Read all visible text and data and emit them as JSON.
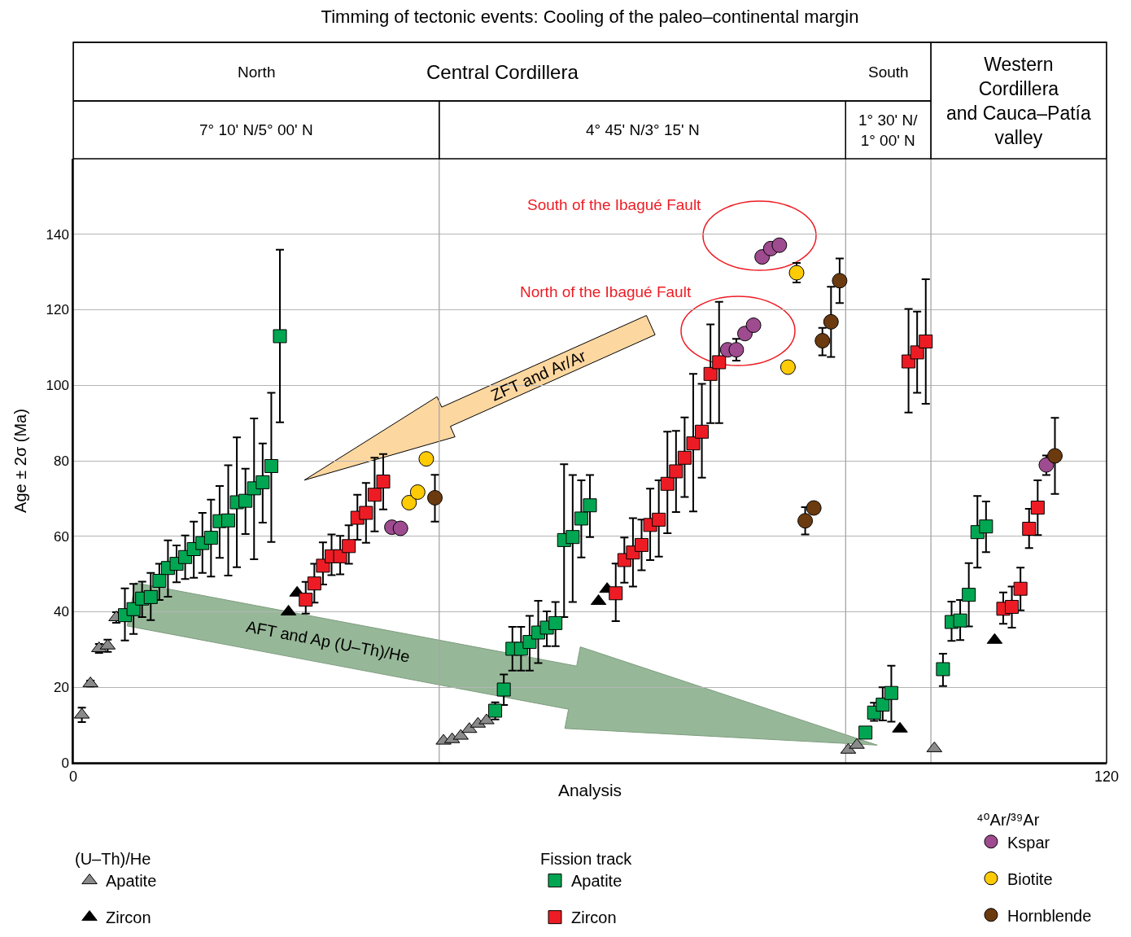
{
  "chart_data": {
    "type": "scatter",
    "title": "Timming of tectonic events: Cooling of the paleo–continental margin",
    "xlabel": "Analysis",
    "ylabel": "Age ± 2σ (Ma)",
    "xlim": [
      0,
      120
    ],
    "xticks": [
      0,
      120
    ],
    "ylim": [
      0,
      160
    ],
    "yticks": [
      0,
      20,
      40,
      60,
      80,
      100,
      120,
      140
    ],
    "grid": "y",
    "legend": "bottom",
    "legend_title": [
      "(U–Th)/He",
      "Fission track",
      "⁴⁰Ar/³⁹Ar"
    ],
    "series": [
      {
        "name": "Apatite",
        "color": "#8a8a8a",
        "marker": "triangle",
        "x": [
          1,
          2,
          3,
          4,
          5,
          43,
          44,
          45,
          46,
          47,
          48,
          90,
          91,
          100
        ],
        "values": [
          12.7,
          21.0,
          30.3,
          31.0,
          38.5,
          5.8,
          6.2,
          7.1,
          8.9,
          10.3,
          11.2,
          3.4,
          4.7,
          3.8
        ],
        "errors": [
          [
            10.8,
            14.6
          ],
          [
            20.2,
            21.8
          ],
          [
            29.1,
            31.5
          ],
          [
            29.4,
            32.6
          ],
          [
            37.1,
            39.9
          ],
          null,
          null,
          null,
          null,
          null,
          null,
          null,
          null,
          null
        ]
      },
      {
        "name": "Zircon",
        "color": "#000000",
        "marker": "triangle",
        "x": [
          25,
          26,
          61,
          62,
          96,
          107
        ],
        "values": [
          40.0,
          45.0,
          42.8,
          46.0,
          9.0,
          32.5
        ]
      },
      {
        "name": "Apatite",
        "color": "#00a651",
        "marker": "square",
        "x": [
          6,
          7,
          8,
          9,
          10,
          11,
          12,
          13,
          14,
          15,
          16,
          17,
          18,
          19,
          20,
          21,
          22,
          23,
          24,
          49,
          50,
          51,
          52,
          53,
          54,
          55,
          56,
          57,
          58,
          59,
          60,
          92,
          93,
          94,
          95,
          101,
          102,
          103,
          104,
          105,
          106
        ],
        "values": [
          39.1,
          40.7,
          43.5,
          43.9,
          48.2,
          51.6,
          52.7,
          54.5,
          56.6,
          58.2,
          59.6,
          64.0,
          64.2,
          69.0,
          69.4,
          72.7,
          74.3,
          78.6,
          113.0,
          13.8,
          19.4,
          30.2,
          30.2,
          32.0,
          34.5,
          35.8,
          37.0,
          59.0,
          59.8,
          64.7,
          68.2,
          8.0,
          13.3,
          15.4,
          18.5,
          24.8,
          37.3,
          37.7,
          44.5,
          61.1,
          62.6
        ],
        "errors": [
          [
            32.4,
            46.2
          ],
          [
            34.1,
            47.4
          ],
          [
            38.6,
            48.0
          ],
          [
            37.8,
            50.3
          ],
          [
            43.1,
            52.7
          ],
          [
            44.0,
            58.9
          ],
          [
            47.8,
            57.6
          ],
          [
            48.7,
            60.2
          ],
          [
            49.0,
            63.9
          ],
          [
            50.3,
            66.2
          ],
          [
            49.3,
            69.7
          ],
          [
            54.3,
            73.3
          ],
          [
            49.6,
            78.8
          ],
          [
            51.8,
            86.2
          ],
          [
            60.6,
            77.9
          ],
          [
            53.9,
            91.2
          ],
          [
            63.6,
            84.6
          ],
          [
            58.5,
            98.0
          ],
          [
            90.2,
            135.9
          ],
          [
            11.5,
            16.0
          ],
          [
            15.3,
            23.4
          ],
          [
            24.4,
            36.0
          ],
          [
            24.4,
            36.0
          ],
          [
            24.4,
            38.9
          ],
          [
            26.4,
            42.9
          ],
          [
            30.9,
            40.1
          ],
          [
            30.9,
            42.6
          ],
          [
            38.6,
            79.1
          ],
          [
            42.6,
            76.2
          ],
          [
            54.4,
            74.8
          ],
          [
            59.8,
            76.2
          ],
          null,
          [
            11.1,
            15.9
          ],
          [
            11.2,
            20.0
          ],
          [
            10.9,
            25.7
          ],
          [
            20.3,
            28.9
          ],
          [
            32.3,
            42.7
          ],
          [
            32.5,
            43.1
          ],
          [
            36.1,
            52.9
          ],
          [
            51.7,
            70.7
          ],
          [
            55.8,
            69.2
          ]
        ]
      },
      {
        "name": "Zircon",
        "color": "#ed1c24",
        "marker": "square",
        "x": [
          27,
          28,
          29,
          30,
          31,
          32,
          33,
          34,
          35,
          36,
          63,
          64,
          65,
          66,
          67,
          68,
          69,
          70,
          71,
          72,
          73,
          74,
          75,
          97,
          98,
          99,
          108,
          109,
          110,
          111,
          112
        ],
        "values": [
          43.2,
          47.5,
          52.2,
          54.7,
          54.7,
          57.4,
          64.9,
          66.2,
          71.0,
          74.5,
          44.9,
          53.7,
          55.7,
          57.7,
          63.0,
          64.4,
          73.9,
          77.2,
          80.8,
          84.6,
          87.7,
          103.0,
          106.1,
          106.3,
          108.7,
          111.6,
          40.8,
          41.3,
          46.1,
          62.0,
          67.6
        ],
        "errors": [
          [
            39.5,
            47.9
          ],
          [
            42.4,
            52.7
          ],
          [
            47.2,
            58.4
          ],
          [
            49.7,
            60.5
          ],
          [
            49.9,
            60.1
          ],
          [
            52.7,
            62.9
          ],
          [
            59.1,
            71.0
          ],
          [
            58.3,
            74.1
          ],
          [
            61.3,
            80.8
          ],
          [
            67.1,
            81.8
          ],
          [
            37.5,
            52.8
          ],
          [
            47.7,
            59.7
          ],
          [
            46.7,
            64.8
          ],
          [
            51.0,
            64.4
          ],
          [
            53.7,
            72.6
          ],
          [
            54.6,
            74.8
          ],
          [
            60.8,
            87.7
          ],
          [
            66.4,
            87.9
          ],
          [
            70.4,
            91.5
          ],
          [
            66.6,
            103.0
          ],
          [
            75.5,
            100.4
          ],
          [
            90.0,
            116.1
          ],
          [
            90.0,
            122.1
          ],
          [
            92.8,
            120.2
          ],
          [
            98.0,
            119.5
          ],
          [
            95.1,
            128.1
          ],
          [
            36.8,
            45.1
          ],
          [
            35.8,
            46.7
          ],
          [
            40.4,
            51.7
          ],
          [
            56.9,
            67.3
          ],
          [
            60.3,
            74.8
          ]
        ]
      },
      {
        "name": "Kspar",
        "color": "#9e4b8f",
        "marker": "circle",
        "x": [
          37,
          38,
          76,
          77,
          78,
          79,
          80,
          81,
          82,
          113
        ],
        "values": [
          62.4,
          62.1,
          109.4,
          109.4,
          113.7,
          115.9,
          134.0,
          136.2,
          137.1,
          78.9
        ],
        "errors": [
          null,
          null,
          null,
          [
            106.5,
            112.3
          ],
          null,
          null,
          null,
          null,
          null,
          [
            76.2,
            81.4
          ]
        ]
      },
      {
        "name": "Biotite",
        "color": "#ffcb05",
        "marker": "circle",
        "x": [
          39,
          40,
          41,
          83,
          84
        ],
        "values": [
          68.9,
          71.7,
          80.5,
          104.8,
          129.8
        ],
        "errors": [
          null,
          null,
          null,
          null,
          [
            127.2,
            132.4
          ]
        ]
      },
      {
        "name": "Hornblende",
        "color": "#6b3a0e",
        "marker": "circle",
        "x": [
          42,
          85,
          86,
          87,
          88,
          89,
          114
        ],
        "values": [
          70.2,
          64.1,
          67.5,
          111.8,
          116.8,
          127.7,
          81.3
        ],
        "errors": [
          [
            63.9,
            76.3
          ],
          [
            60.5,
            67.7
          ],
          null,
          [
            107.9,
            115.2
          ],
          [
            107.5,
            126.1
          ],
          [
            121.8,
            133.6
          ],
          [
            71.2,
            91.4
          ]
        ]
      }
    ],
    "ref_lines": [
      {
        "axis": "x",
        "value": 42.5
      },
      {
        "axis": "x",
        "value": 89.7
      },
      {
        "axis": "x",
        "value": 99.6
      }
    ],
    "annotations": [
      "North",
      "Central Cordillera",
      "South",
      "Western\nCordillera\nand Cauca–Patía\nvalley",
      "7° 10' N/5° 00' N",
      "4° 45' N/3° 15' N",
      "1° 30' N/\n1° 00' N",
      "South of the Ibagué Fault",
      "North of the Ibagué Fault",
      "ZFT and Ar/Ar",
      "AFT and Ap (U–Th)/He"
    ]
  }
}
